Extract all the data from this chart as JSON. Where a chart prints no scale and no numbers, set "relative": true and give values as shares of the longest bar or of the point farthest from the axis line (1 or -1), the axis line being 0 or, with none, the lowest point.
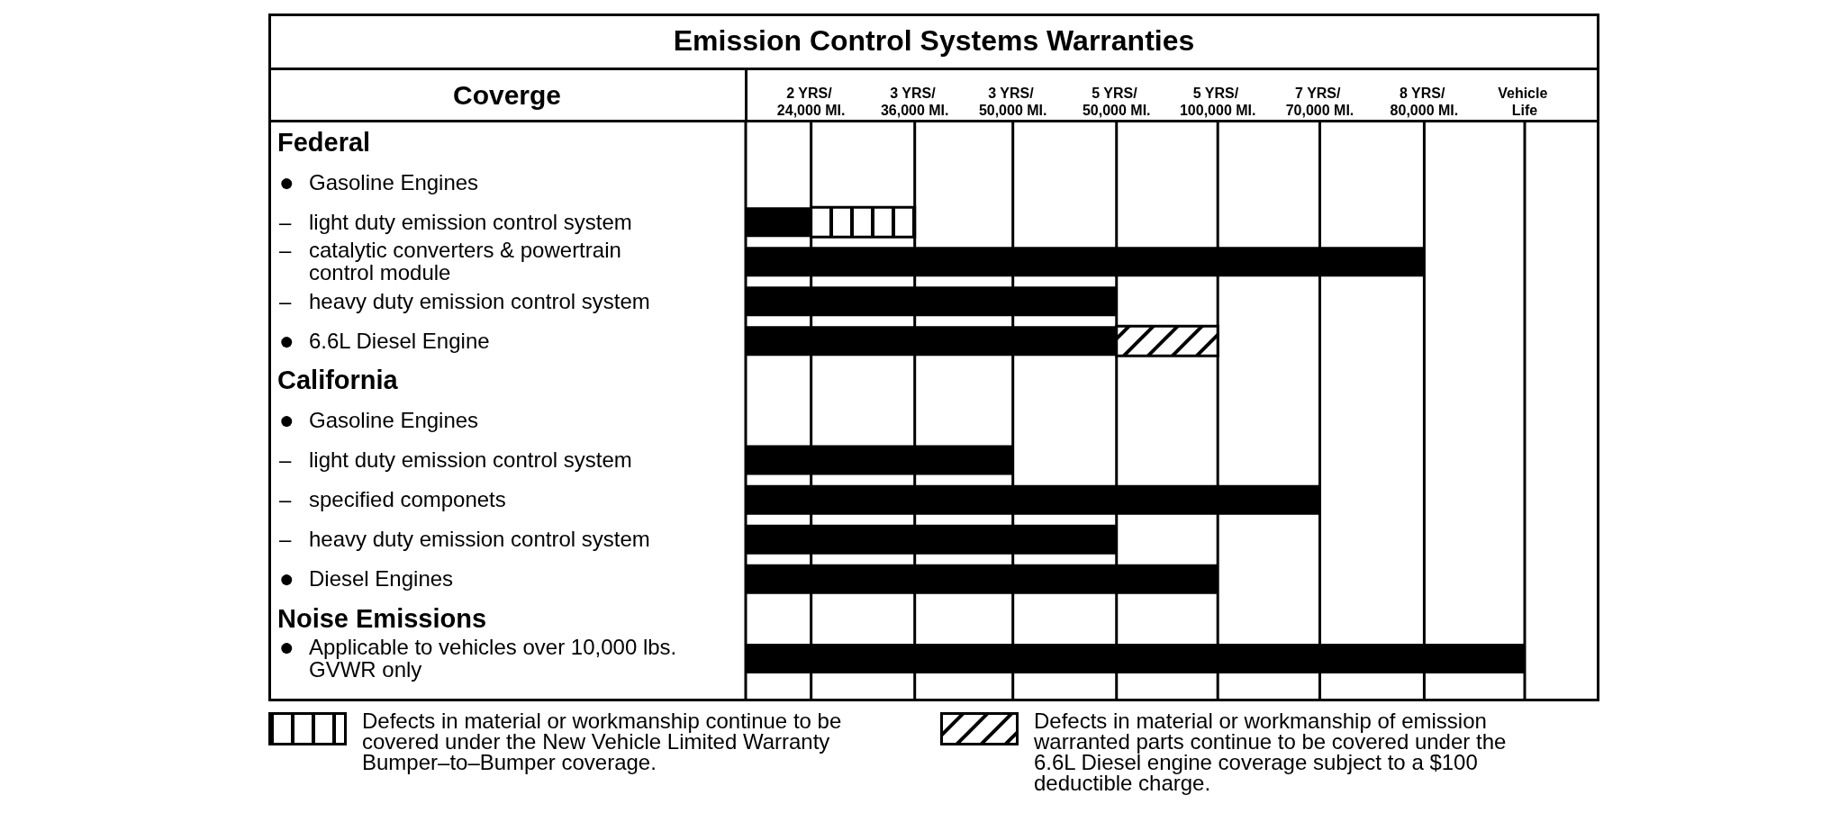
{
  "chart_data": {
    "type": "bar",
    "orientation": "horizontal",
    "stacked": true,
    "relative": true,
    "title": "Emission Control Systems Warranties",
    "ylabel": "Coverge",
    "categories": [
      "Federal",
      "● Gasoline Engines",
      "– light duty emission control system",
      "– catalytic converters & powertrain control module",
      "– heavy duty emission control system",
      "● 6.6L Diesel Engine",
      "California",
      "● Gasoline Engines",
      "– light duty emission control system",
      "– specified componets",
      "– heavy duty emission control system",
      "● Diesel Engines",
      "Noise Emissions",
      "● Applicable to vehicles over 10,000 lbs. GVWR only"
    ],
    "ref_lines": [
      {
        "axis": "x",
        "value": 0.084,
        "label": "2 YRS/ 24,000 MI."
      },
      {
        "axis": "x",
        "value": 0.217,
        "label": "3 YRS/ 36,000 MI."
      },
      {
        "axis": "x",
        "value": 0.343,
        "label": "3 YRS/ 50,000 MI."
      },
      {
        "axis": "x",
        "value": 0.476,
        "label": "5 YRS/ 50,000 MI."
      },
      {
        "axis": "x",
        "value": 0.606,
        "label": "5 YRS/ 100,000 MI."
      },
      {
        "axis": "x",
        "value": 0.737,
        "label": "7 YRS/ 70,000 MI."
      },
      {
        "axis": "x",
        "value": 0.871,
        "label": "8 YRS/ 80,000 MI."
      },
      {
        "axis": "x",
        "value": 1,
        "label": "Vehicle Life"
      }
    ],
    "legend": "bottom",
    "series": [
      {
        "color": "#000000",
        "values": [
          null,
          null,
          0.084,
          0.871,
          0.476,
          0.476,
          null,
          null,
          0.343,
          0.737,
          0.476,
          0.606,
          null,
          1
        ]
      },
      {
        "name": "Defects in material or workmanship continue to be covered under the New Vehicle Limited Warranty Bumper–to–Bumper coverage.",
        "color": "#000000",
        "values": [
          null,
          null,
          0.133,
          null,
          null,
          null,
          null,
          null,
          null,
          null,
          null,
          null,
          null,
          null
        ]
      },
      {
        "name": "Defects in material or workmanship of emission warranted parts continue to be covered under the 6.6L Diesel engine coverage subject to a $100 deductible charge.",
        "color": "#000000",
        "values": [
          null,
          null,
          null,
          null,
          null,
          0.13,
          null,
          null,
          null,
          null,
          null,
          null,
          null,
          null
        ]
      }
    ]
  }
}
